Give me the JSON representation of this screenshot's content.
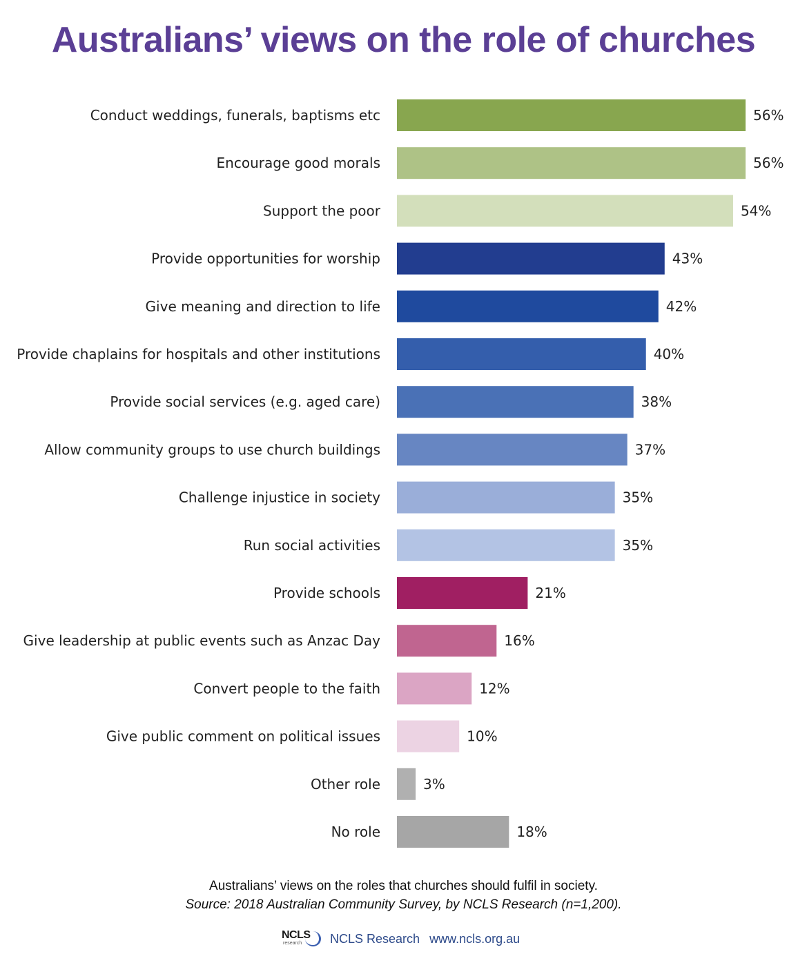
{
  "title": "Australians’ views on the role of churches",
  "caption": "Australians’ views on the roles that churches should fulfil in society.",
  "source": "Source: 2018 Australian Community Survey, by NCLS Research (n=1,200).",
  "footer": {
    "logo_text": "NCLS",
    "logo_subtext": "research",
    "brand": "NCLS Research",
    "url": "www.ncls.org.au"
  },
  "chart_data": {
    "type": "bar",
    "orientation": "horizontal",
    "value_suffix": "%",
    "xlim": [
      0,
      56
    ],
    "grid": false,
    "legend": "none",
    "categories": [
      "Conduct weddings, funerals, baptisms etc",
      "Encourage good morals",
      "Support the poor",
      "Provide opportunities for worship",
      "Give meaning and direction to life",
      "Provide chaplains for hospitals and other institutions",
      "Provide social services (e.g. aged care)",
      "Allow community groups to use church buildings",
      "Challenge injustice in society",
      "Run social activities",
      "Provide schools",
      "Give leadership at public events such as Anzac Day",
      "Convert people to the faith",
      "Give public comment on political issues",
      "Other role",
      "No role"
    ],
    "values": [
      56,
      56,
      54,
      43,
      42,
      40,
      38,
      37,
      35,
      35,
      21,
      16,
      12,
      10,
      3,
      18
    ],
    "colors": [
      "#88a64f",
      "#aec286",
      "#d3dfbb",
      "#223d8f",
      "#1f4a9e",
      "#345eac",
      "#4a71b6",
      "#6786c2",
      "#9aaed9",
      "#b3c3e4",
      "#a01f62",
      "#c06590",
      "#dba5c4",
      "#ecd3e3",
      "#b0b0b0",
      "#a6a6a6"
    ]
  }
}
